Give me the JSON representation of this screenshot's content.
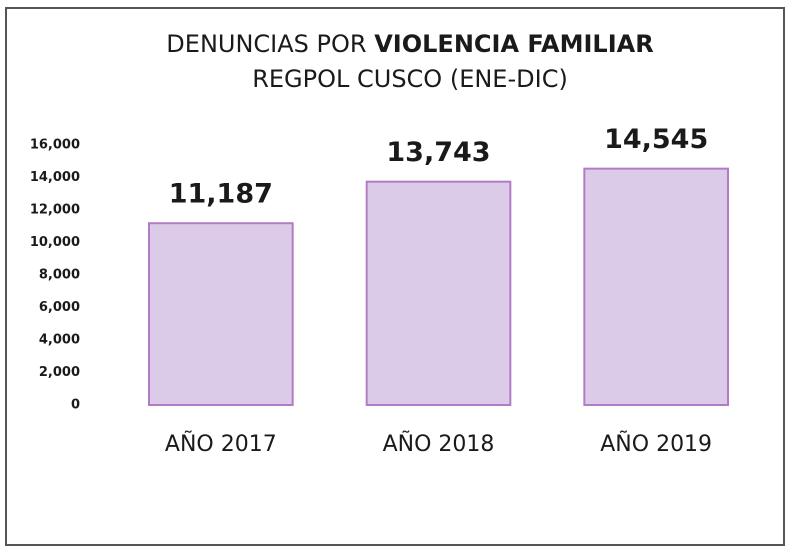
{
  "chart_data": {
    "type": "bar",
    "title": [
      "DENUNCIAS POR",
      "VIOLENCIA FAMILIAR"
    ],
    "subtitle": "REGPOL CUSCO (ENE-DIC)",
    "categories": [
      "AÑO 2017",
      "AÑO 2018",
      "AÑO 2019"
    ],
    "values": [
      11187,
      13743,
      14545
    ],
    "value_labels": [
      "11,187",
      "13,743",
      "14,545"
    ],
    "color": "#dccbe8",
    "edge_color": "#b27cc4",
    "ylim": [
      0,
      16000
    ],
    "yticks": [
      0,
      {
        "value": 2000,
        "label": "2,000"
      },
      {
        "value": 4000,
        "label": "4,000"
      },
      {
        "value": 6000,
        "label": "6,000"
      },
      {
        "value": 8000,
        "label": "8,000"
      },
      {
        "value": 10000,
        "label": "10,000"
      },
      {
        "value": 12000,
        "label": "12,000"
      },
      {
        "value": 14000,
        "label": "14,000"
      },
      {
        "value": 16000,
        "label": "16,000"
      }
    ],
    "grid": false
  }
}
